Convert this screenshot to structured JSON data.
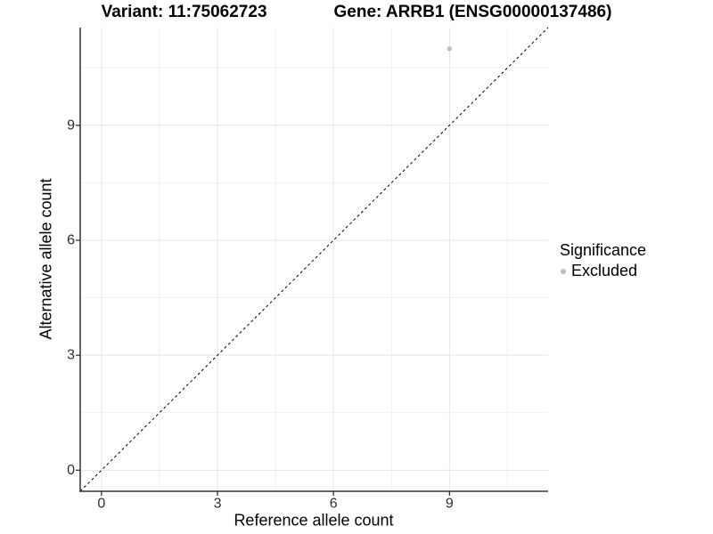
{
  "title": {
    "variant": "Variant: 11:75062723",
    "gene": "Gene: ARRB1 (ENSG00000137486)"
  },
  "legend": {
    "title": "Significance",
    "items": [
      {
        "label": "Excluded",
        "color": "#bebebe"
      }
    ]
  },
  "chart_data": {
    "type": "scatter",
    "title": "Variant: 11:75062723  Gene: ARRB1 (ENSG00000137486)",
    "xlabel": "Reference allele count",
    "ylabel": "Alternative allele count",
    "xlim": [
      -0.55,
      11.55
    ],
    "ylim": [
      -0.55,
      11.55
    ],
    "major_ticks": [
      0,
      3,
      6,
      9
    ],
    "minor_ticks": [
      1.5,
      4.5,
      7.5,
      10.5
    ],
    "grid": true,
    "legend_position": "right",
    "series": [
      {
        "name": "Excluded",
        "color": "#c2c2c2",
        "points": [
          {
            "x": 9,
            "y": 11
          }
        ],
        "point_radius": 2.8
      }
    ],
    "reference_line": {
      "type": "identity",
      "style": "dashed",
      "color": "#000000",
      "dash": "3,3"
    },
    "colors": {
      "major_grid": "#e5e5e5",
      "minor_grid": "#f1f1f1",
      "axis_line": "#333333",
      "tick_label": "#2e2e2e"
    }
  }
}
